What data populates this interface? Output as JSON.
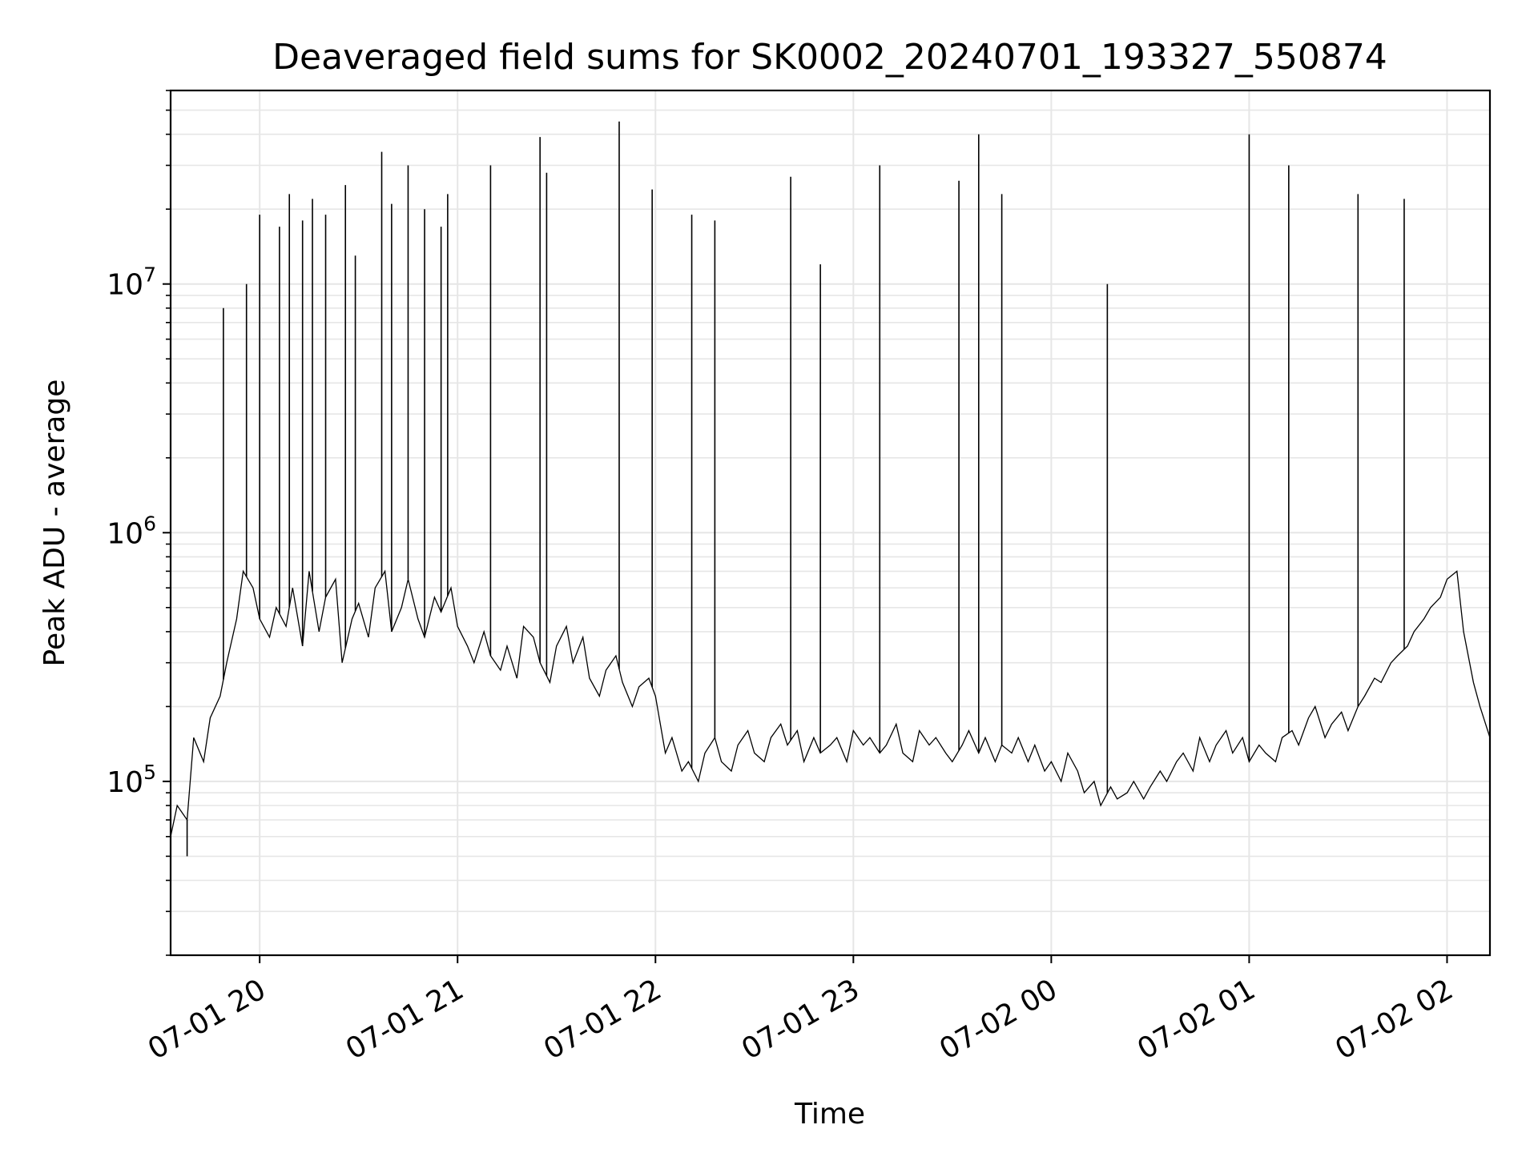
{
  "chart_data": {
    "type": "line",
    "title": "Deaveraged field sums for SK0002_20240701_193327_550874",
    "xlabel": "Time",
    "ylabel": "Peak ADU - average",
    "yscale": "log",
    "ylim": [
      20000,
      60000000
    ],
    "xlim": [
      "2024-07-01 19:33",
      "2024-07-02 02:13"
    ],
    "grid": true,
    "line_color": "#000000",
    "x_ticks": [
      {
        "t": "2024-07-01 20:00",
        "label": "07-01 20"
      },
      {
        "t": "2024-07-01 21:00",
        "label": "07-01 21"
      },
      {
        "t": "2024-07-01 22:00",
        "label": "07-01 22"
      },
      {
        "t": "2024-07-01 23:00",
        "label": "07-01 23"
      },
      {
        "t": "2024-07-02 00:00",
        "label": "07-02 00"
      },
      {
        "t": "2024-07-02 01:00",
        "label": "07-02 01"
      },
      {
        "t": "2024-07-02 02:00",
        "label": "07-02 02"
      }
    ],
    "y_ticks": [
      {
        "v": 100000,
        "base": "10",
        "exp": "5"
      },
      {
        "v": 1000000,
        "base": "10",
        "exp": "6"
      },
      {
        "v": 10000000,
        "base": "10",
        "exp": "7"
      }
    ],
    "series": [
      {
        "x": [
          "2024-07-01 19:33",
          "2024-07-01 19:35",
          "2024-07-01 19:38",
          "2024-07-01 19:40",
          "2024-07-01 19:43",
          "2024-07-01 19:45",
          "2024-07-01 19:48",
          "2024-07-01 19:50",
          "2024-07-01 19:53",
          "2024-07-01 19:55",
          "2024-07-01 19:58",
          "2024-07-01 20:00",
          "2024-07-01 20:03",
          "2024-07-01 20:05",
          "2024-07-01 20:08",
          "2024-07-01 20:10",
          "2024-07-01 20:13",
          "2024-07-01 20:15",
          "2024-07-01 20:18",
          "2024-07-01 20:20",
          "2024-07-01 20:23",
          "2024-07-01 20:25",
          "2024-07-01 20:28",
          "2024-07-01 20:30",
          "2024-07-01 20:33",
          "2024-07-01 20:35",
          "2024-07-01 20:38",
          "2024-07-01 20:40",
          "2024-07-01 20:43",
          "2024-07-01 20:45",
          "2024-07-01 20:48",
          "2024-07-01 20:50",
          "2024-07-01 20:53",
          "2024-07-01 20:55",
          "2024-07-01 20:58",
          "2024-07-01 21:00",
          "2024-07-01 21:03",
          "2024-07-01 21:05",
          "2024-07-01 21:08",
          "2024-07-01 21:10",
          "2024-07-01 21:13",
          "2024-07-01 21:15",
          "2024-07-01 21:18",
          "2024-07-01 21:20",
          "2024-07-01 21:23",
          "2024-07-01 21:25",
          "2024-07-01 21:28",
          "2024-07-01 21:30",
          "2024-07-01 21:33",
          "2024-07-01 21:35",
          "2024-07-01 21:38",
          "2024-07-01 21:40",
          "2024-07-01 21:43",
          "2024-07-01 21:45",
          "2024-07-01 21:48",
          "2024-07-01 21:50",
          "2024-07-01 21:53",
          "2024-07-01 21:55",
          "2024-07-01 21:58",
          "2024-07-01 22:00",
          "2024-07-01 22:03",
          "2024-07-01 22:05",
          "2024-07-01 22:08",
          "2024-07-01 22:10",
          "2024-07-01 22:13",
          "2024-07-01 22:15",
          "2024-07-01 22:18",
          "2024-07-01 22:20",
          "2024-07-01 22:23",
          "2024-07-01 22:25",
          "2024-07-01 22:28",
          "2024-07-01 22:30",
          "2024-07-01 22:33",
          "2024-07-01 22:35",
          "2024-07-01 22:38",
          "2024-07-01 22:40",
          "2024-07-01 22:43",
          "2024-07-01 22:45",
          "2024-07-01 22:48",
          "2024-07-01 22:50",
          "2024-07-01 22:53",
          "2024-07-01 22:55",
          "2024-07-01 22:58",
          "2024-07-01 23:00",
          "2024-07-01 23:03",
          "2024-07-01 23:05",
          "2024-07-01 23:08",
          "2024-07-01 23:10",
          "2024-07-01 23:13",
          "2024-07-01 23:15",
          "2024-07-01 23:18",
          "2024-07-01 23:20",
          "2024-07-01 23:23",
          "2024-07-01 23:25",
          "2024-07-01 23:28",
          "2024-07-01 23:30",
          "2024-07-01 23:33",
          "2024-07-01 23:35",
          "2024-07-01 23:38",
          "2024-07-01 23:40",
          "2024-07-01 23:43",
          "2024-07-01 23:45",
          "2024-07-01 23:48",
          "2024-07-01 23:50",
          "2024-07-01 23:53",
          "2024-07-01 23:55",
          "2024-07-01 23:58",
          "2024-07-02 00:00",
          "2024-07-02 00:03",
          "2024-07-02 00:05",
          "2024-07-02 00:08",
          "2024-07-02 00:10",
          "2024-07-02 00:13",
          "2024-07-02 00:15",
          "2024-07-02 00:18",
          "2024-07-02 00:20",
          "2024-07-02 00:23",
          "2024-07-02 00:25",
          "2024-07-02 00:28",
          "2024-07-02 00:30",
          "2024-07-02 00:33",
          "2024-07-02 00:35",
          "2024-07-02 00:38",
          "2024-07-02 00:40",
          "2024-07-02 00:43",
          "2024-07-02 00:45",
          "2024-07-02 00:48",
          "2024-07-02 00:50",
          "2024-07-02 00:53",
          "2024-07-02 00:55",
          "2024-07-02 00:58",
          "2024-07-02 01:00",
          "2024-07-02 01:03",
          "2024-07-02 01:05",
          "2024-07-02 01:08",
          "2024-07-02 01:10",
          "2024-07-02 01:13",
          "2024-07-02 01:15",
          "2024-07-02 01:18",
          "2024-07-02 01:20",
          "2024-07-02 01:23",
          "2024-07-02 01:25",
          "2024-07-02 01:28",
          "2024-07-02 01:30",
          "2024-07-02 01:33",
          "2024-07-02 01:35",
          "2024-07-02 01:38",
          "2024-07-02 01:40",
          "2024-07-02 01:43",
          "2024-07-02 01:45",
          "2024-07-02 01:48",
          "2024-07-02 01:50",
          "2024-07-02 01:53",
          "2024-07-02 01:55",
          "2024-07-02 01:58",
          "2024-07-02 02:00",
          "2024-07-02 02:03",
          "2024-07-02 02:05",
          "2024-07-02 02:08",
          "2024-07-02 02:10",
          "2024-07-02 02:13"
        ],
        "y": [
          60000,
          80000,
          70000,
          150000,
          120000,
          180000,
          220000,
          300000,
          450000,
          700000,
          600000,
          450000,
          380000,
          500000,
          420000,
          600000,
          350000,
          700000,
          400000,
          550000,
          650000,
          300000,
          450000,
          520000,
          380000,
          600000,
          700000,
          400000,
          500000,
          650000,
          450000,
          380000,
          550000,
          480000,
          600000,
          420000,
          350000,
          300000,
          400000,
          320000,
          280000,
          350000,
          260000,
          420000,
          380000,
          300000,
          250000,
          350000,
          420000,
          300000,
          380000,
          260000,
          220000,
          280000,
          320000,
          250000,
          200000,
          240000,
          260000,
          220000,
          130000,
          150000,
          110000,
          120000,
          100000,
          130000,
          150000,
          120000,
          110000,
          140000,
          160000,
          130000,
          120000,
          150000,
          170000,
          140000,
          160000,
          120000,
          150000,
          130000,
          140000,
          150000,
          120000,
          160000,
          140000,
          150000,
          130000,
          140000,
          170000,
          130000,
          120000,
          160000,
          140000,
          150000,
          130000,
          120000,
          140000,
          160000,
          130000,
          150000,
          120000,
          140000,
          130000,
          150000,
          120000,
          140000,
          110000,
          120000,
          100000,
          130000,
          110000,
          90000,
          100000,
          80000,
          95000,
          85000,
          90000,
          100000,
          85000,
          95000,
          110000,
          100000,
          120000,
          130000,
          110000,
          150000,
          120000,
          140000,
          160000,
          130000,
          150000,
          120000,
          140000,
          130000,
          120000,
          150000,
          160000,
          140000,
          180000,
          200000,
          150000,
          170000,
          190000,
          160000,
          200000,
          220000,
          260000,
          250000,
          300000,
          320000,
          350000,
          400000,
          450000,
          500000,
          550000,
          650000,
          700000,
          400000,
          250000,
          200000,
          150000
        ]
      },
      {
        "x": [
          "2024-07-01 19:38",
          "2024-07-01 19:49",
          "2024-07-01 19:56",
          "2024-07-01 20:00",
          "2024-07-01 20:06",
          "2024-07-01 20:09",
          "2024-07-01 20:13",
          "2024-07-01 20:16",
          "2024-07-01 20:20",
          "2024-07-01 20:26",
          "2024-07-01 20:29",
          "2024-07-01 20:37",
          "2024-07-01 20:40",
          "2024-07-01 20:45",
          "2024-07-01 20:50",
          "2024-07-01 20:55",
          "2024-07-01 20:57",
          "2024-07-01 21:10",
          "2024-07-01 21:25",
          "2024-07-01 21:27",
          "2024-07-01 21:49",
          "2024-07-01 21:59",
          "2024-07-01 22:11",
          "2024-07-01 22:18",
          "2024-07-01 22:41",
          "2024-07-01 22:50",
          "2024-07-01 23:08",
          "2024-07-01 23:32",
          "2024-07-01 23:38",
          "2024-07-01 23:45",
          "2024-07-02 00:17",
          "2024-07-02 01:00",
          "2024-07-02 01:12",
          "2024-07-02 01:33",
          "2024-07-02 01:47"
        ],
        "y": [
          50000,
          8000000,
          10000000,
          19000000,
          17000000,
          23000000,
          18000000,
          22000000,
          19000000,
          25000000,
          13000000,
          34000000,
          21000000,
          30000000,
          20000000,
          17000000,
          23000000,
          30000000,
          39000000,
          28000000,
          45000000,
          24000000,
          19000000,
          18000000,
          27000000,
          12000000,
          30000000,
          26000000,
          40000000,
          23000000,
          10000000,
          40000000,
          30000000,
          23000000,
          22000000
        ]
      }
    ]
  }
}
